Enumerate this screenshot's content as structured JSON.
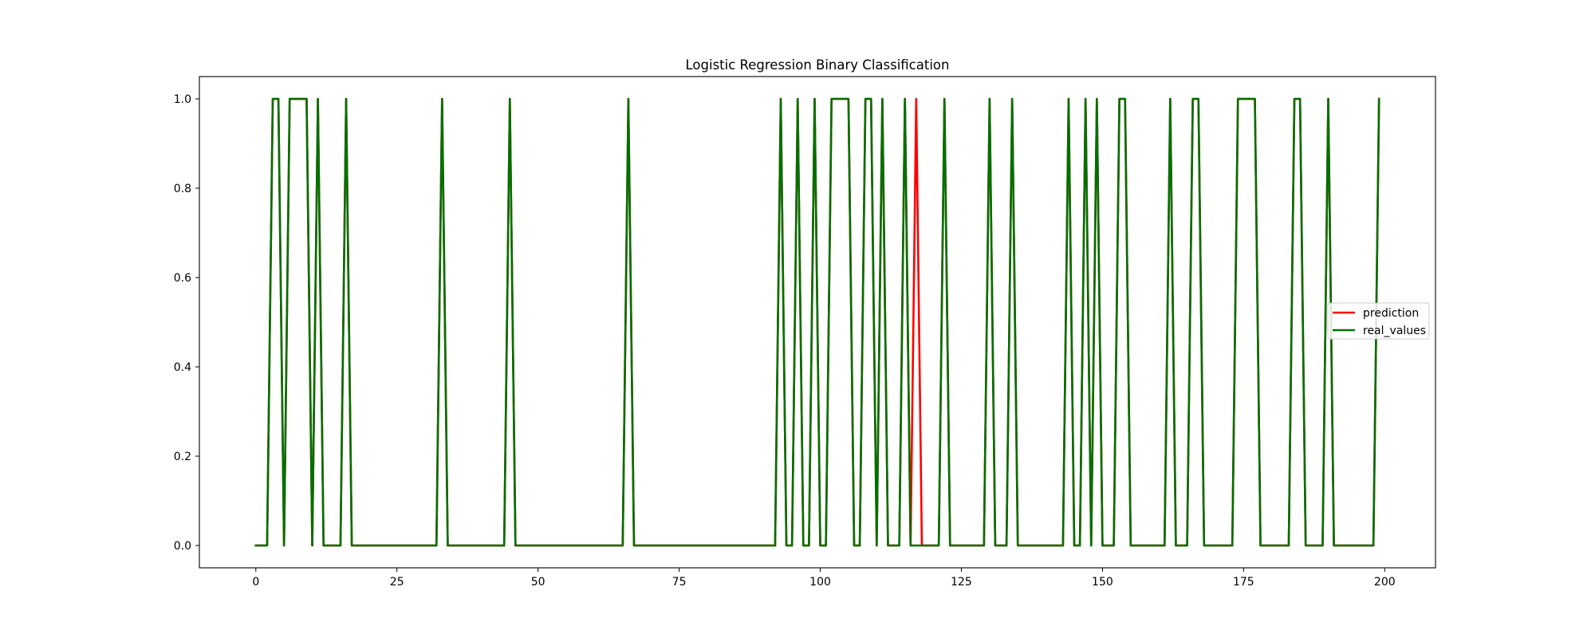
{
  "chart_data": {
    "type": "line",
    "title": "Logistic Regression Binary Classification",
    "xlabel": "",
    "ylabel": "",
    "xlim": [
      -10,
      209
    ],
    "ylim": [
      -0.05,
      1.05
    ],
    "x_ticks": [
      0,
      25,
      50,
      75,
      100,
      125,
      150,
      175,
      200
    ],
    "x_tick_labels": [
      "0",
      "25",
      "50",
      "75",
      "100",
      "125",
      "150",
      "175",
      "200"
    ],
    "y_ticks": [
      0.0,
      0.2,
      0.4,
      0.6,
      0.8,
      1.0
    ],
    "y_tick_labels": [
      "0.0",
      "0.2",
      "0.4",
      "0.6",
      "0.8",
      "1.0"
    ],
    "grid": false,
    "legend_position": "center-right",
    "x_start": 0,
    "series": [
      {
        "name": "prediction",
        "color": "#ff0000",
        "values": [
          0,
          0,
          0,
          1,
          1,
          0,
          1,
          1,
          1,
          1,
          0,
          1,
          0,
          0,
          0,
          0,
          1,
          0,
          0,
          0,
          0,
          0,
          0,
          0,
          0,
          0,
          0,
          0,
          0,
          0,
          0,
          0,
          0,
          1,
          0,
          0,
          0,
          0,
          0,
          0,
          0,
          0,
          0,
          0,
          0,
          1,
          0,
          0,
          0,
          0,
          0,
          0,
          0,
          0,
          0,
          0,
          0,
          0,
          0,
          0,
          0,
          0,
          0,
          0,
          0,
          0,
          1,
          0,
          0,
          0,
          0,
          0,
          0,
          0,
          0,
          0,
          0,
          0,
          0,
          0,
          0,
          0,
          0,
          0,
          0,
          0,
          0,
          0,
          0,
          0,
          0,
          0,
          0,
          1,
          0,
          0,
          1,
          0,
          0,
          1,
          0,
          0,
          1,
          1,
          1,
          1,
          0,
          0,
          1,
          1,
          0,
          1,
          0,
          0,
          0,
          1,
          0,
          1,
          0,
          0,
          0,
          0,
          1,
          0,
          0,
          0,
          0,
          0,
          0,
          0,
          1,
          0,
          0,
          0,
          1,
          0,
          0,
          0,
          0,
          0,
          0,
          0,
          0,
          0,
          1,
          0,
          0,
          1,
          0,
          1,
          0,
          0,
          0,
          1,
          1,
          0,
          0,
          0,
          0,
          0,
          0,
          0,
          1,
          0,
          0,
          0,
          1,
          1,
          0,
          0,
          0,
          0,
          0,
          0,
          1,
          1,
          1,
          1,
          0,
          0,
          0,
          0,
          0,
          0,
          1,
          1,
          0,
          0,
          0,
          0,
          1,
          0,
          0,
          0,
          0,
          0,
          0,
          0,
          0,
          1
        ]
      },
      {
        "name": "real_values",
        "color": "#007000",
        "values": [
          0,
          0,
          0,
          1,
          1,
          0,
          1,
          1,
          1,
          1,
          0,
          1,
          0,
          0,
          0,
          0,
          1,
          0,
          0,
          0,
          0,
          0,
          0,
          0,
          0,
          0,
          0,
          0,
          0,
          0,
          0,
          0,
          0,
          1,
          0,
          0,
          0,
          0,
          0,
          0,
          0,
          0,
          0,
          0,
          0,
          1,
          0,
          0,
          0,
          0,
          0,
          0,
          0,
          0,
          0,
          0,
          0,
          0,
          0,
          0,
          0,
          0,
          0,
          0,
          0,
          0,
          1,
          0,
          0,
          0,
          0,
          0,
          0,
          0,
          0,
          0,
          0,
          0,
          0,
          0,
          0,
          0,
          0,
          0,
          0,
          0,
          0,
          0,
          0,
          0,
          0,
          0,
          0,
          1,
          0,
          0,
          1,
          0,
          0,
          1,
          0,
          0,
          1,
          1,
          1,
          1,
          0,
          0,
          1,
          1,
          0,
          1,
          0,
          0,
          0,
          1,
          0,
          0,
          0,
          0,
          0,
          0,
          1,
          0,
          0,
          0,
          0,
          0,
          0,
          0,
          1,
          0,
          0,
          0,
          1,
          0,
          0,
          0,
          0,
          0,
          0,
          0,
          0,
          0,
          1,
          0,
          0,
          1,
          0,
          1,
          0,
          0,
          0,
          1,
          1,
          0,
          0,
          0,
          0,
          0,
          0,
          0,
          1,
          0,
          0,
          0,
          1,
          1,
          0,
          0,
          0,
          0,
          0,
          0,
          1,
          1,
          1,
          1,
          0,
          0,
          0,
          0,
          0,
          0,
          1,
          1,
          0,
          0,
          0,
          0,
          1,
          0,
          0,
          0,
          0,
          0,
          0,
          0,
          0,
          1
        ]
      }
    ]
  }
}
